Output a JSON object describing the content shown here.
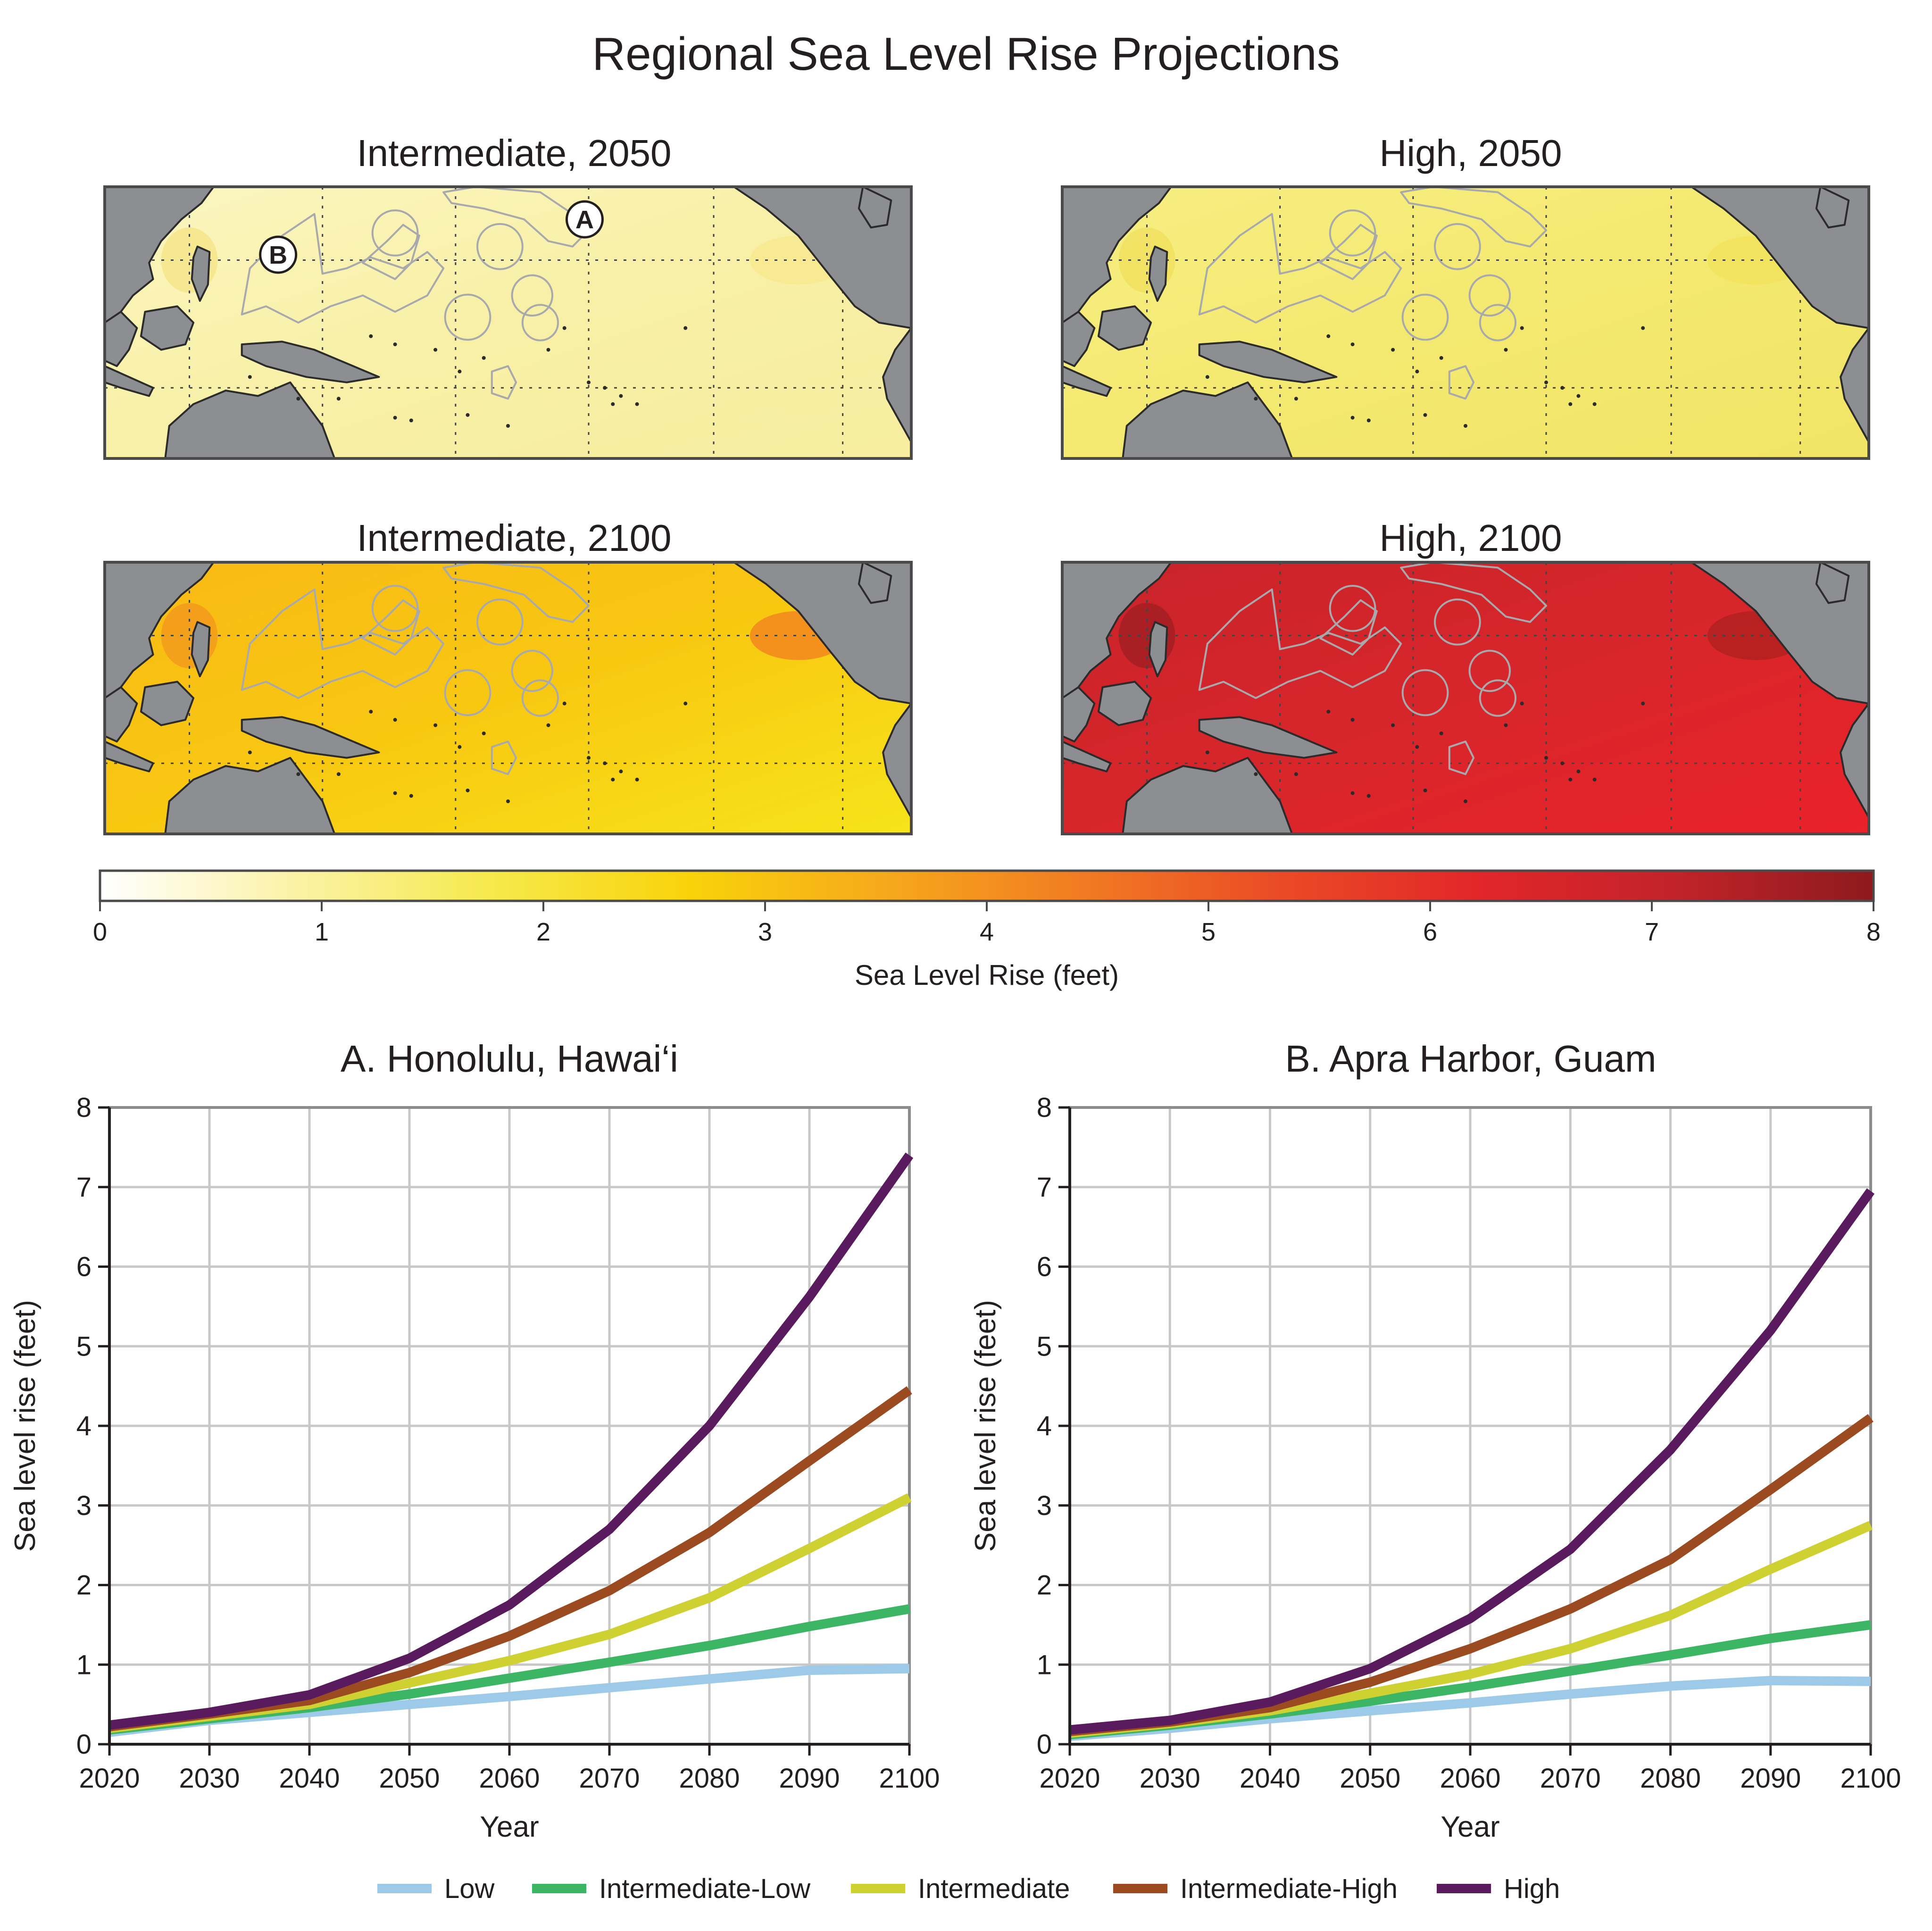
{
  "title": "Regional Sea Level Rise Projections",
  "colors": {
    "land": "#8d8e91",
    "coast": "#2b2b2b",
    "region_outline": "#a7a9ac",
    "grid_map": "#444444",
    "grid_chart": "#c8c8c8",
    "frame": "#4a4a4a",
    "colormap": [
      "#ffffff",
      "#fbf2a6",
      "#f6e94a",
      "#f9d20a",
      "#f6a81c",
      "#f17a22",
      "#ea4a26",
      "#e22629",
      "#c1232a",
      "#8d1a1d"
    ]
  },
  "maps": [
    {
      "title": "Intermediate, 2050",
      "scenario": "Intermediate",
      "year": 2050,
      "colors": [
        "#fbf6c0",
        "#f8f0a6",
        "#f6eda0"
      ],
      "hotspots": [
        "#f5e58a",
        "#f7e98e"
      ],
      "markers": [
        "A",
        "B"
      ]
    },
    {
      "title": "High, 2050",
      "scenario": "High",
      "year": 2050,
      "colors": [
        "#f7ee82",
        "#f4e970",
        "#f1e466"
      ],
      "hotspots": [
        "#f0e060",
        "#f2e25c"
      ],
      "markers": []
    },
    {
      "title": "Intermediate, 2100",
      "scenario": "Intermediate",
      "year": 2100,
      "colors": [
        "#f9b915",
        "#f8c811",
        "#f6e41a"
      ],
      "hotspots": [
        "#f29a1c",
        "#f3821f"
      ],
      "markers": []
    },
    {
      "title": "High, 2100",
      "scenario": "High",
      "year": 2100,
      "colors": [
        "#c8232a",
        "#d7262b",
        "#ea2229"
      ],
      "hotspots": [
        "#a31e23",
        "#b0211f"
      ],
      "markers": []
    }
  ],
  "colorbar": {
    "label": "Sea Level Rise (feet)",
    "min": 0,
    "max": 8,
    "ticks": [
      "0",
      "1",
      "2",
      "3",
      "4",
      "5",
      "6",
      "7",
      "8"
    ]
  },
  "chart_data": [
    {
      "type": "line",
      "title": "A. Honolulu, Hawai‘i",
      "xlabel": "Year",
      "ylabel": "Sea level rise (feet)",
      "xlim": [
        2020,
        2100
      ],
      "ylim": [
        0,
        8
      ],
      "x": [
        2020,
        2030,
        2040,
        2050,
        2060,
        2070,
        2080,
        2090,
        2100
      ],
      "x_ticks": [
        "2020",
        "2030",
        "2040",
        "2050",
        "2060",
        "2070",
        "2080",
        "2090",
        "2100"
      ],
      "y_ticks": [
        "0",
        "1",
        "2",
        "3",
        "4",
        "5",
        "6",
        "7",
        "8"
      ],
      "grid": true,
      "series": [
        {
          "name": "Low",
          "color": "#9ecae9",
          "values": [
            0.15,
            0.3,
            0.4,
            0.5,
            0.6,
            0.71,
            0.82,
            0.93,
            0.95
          ]
        },
        {
          "name": "Intermediate-Low",
          "color": "#3cb664",
          "values": [
            0.18,
            0.32,
            0.46,
            0.63,
            0.83,
            1.03,
            1.24,
            1.48,
            1.7
          ]
        },
        {
          "name": "Intermediate",
          "color": "#cfd031",
          "values": [
            0.2,
            0.35,
            0.5,
            0.77,
            1.05,
            1.38,
            1.84,
            2.46,
            3.1
          ]
        },
        {
          "name": "Intermediate-High",
          "color": "#9c4a1f",
          "values": [
            0.22,
            0.38,
            0.55,
            0.9,
            1.36,
            1.93,
            2.66,
            3.56,
            4.45
          ]
        },
        {
          "name": "High",
          "color": "#5a1a5e",
          "values": [
            0.24,
            0.4,
            0.62,
            1.08,
            1.75,
            2.7,
            4.0,
            5.62,
            7.4
          ]
        }
      ]
    },
    {
      "type": "line",
      "title": "B. Apra Harbor, Guam",
      "xlabel": "Year",
      "ylabel": "Sea level rise (feet)",
      "xlim": [
        2020,
        2100
      ],
      "ylim": [
        0,
        8
      ],
      "x": [
        2020,
        2030,
        2040,
        2050,
        2060,
        2070,
        2080,
        2090,
        2100
      ],
      "x_ticks": [
        "2020",
        "2030",
        "2040",
        "2050",
        "2060",
        "2070",
        "2080",
        "2090",
        "2100"
      ],
      "y_ticks": [
        "0",
        "1",
        "2",
        "3",
        "4",
        "5",
        "6",
        "7",
        "8"
      ],
      "grid": true,
      "series": [
        {
          "name": "Low",
          "color": "#9ecae9",
          "values": [
            0.1,
            0.2,
            0.32,
            0.42,
            0.52,
            0.63,
            0.73,
            0.8,
            0.79
          ]
        },
        {
          "name": "Intermediate-Low",
          "color": "#3cb664",
          "values": [
            0.12,
            0.24,
            0.38,
            0.54,
            0.72,
            0.92,
            1.12,
            1.33,
            1.5
          ]
        },
        {
          "name": "Intermediate",
          "color": "#cfd031",
          "values": [
            0.14,
            0.26,
            0.42,
            0.64,
            0.88,
            1.2,
            1.62,
            2.2,
            2.75
          ]
        },
        {
          "name": "Intermediate-High",
          "color": "#9c4a1f",
          "values": [
            0.16,
            0.28,
            0.46,
            0.78,
            1.2,
            1.7,
            2.32,
            3.2,
            4.1
          ]
        },
        {
          "name": "High",
          "color": "#5a1a5e",
          "values": [
            0.18,
            0.3,
            0.53,
            0.95,
            1.58,
            2.45,
            3.7,
            5.2,
            6.95
          ]
        }
      ]
    }
  ],
  "legend": {
    "placement": "bottom-center",
    "items": [
      {
        "name": "Low",
        "color": "#9ecae9"
      },
      {
        "name": "Intermediate-Low",
        "color": "#3cb664"
      },
      {
        "name": "Intermediate",
        "color": "#cfd031"
      },
      {
        "name": "Intermediate-High",
        "color": "#9c4a1f"
      },
      {
        "name": "High",
        "color": "#5a1a5e"
      }
    ]
  }
}
